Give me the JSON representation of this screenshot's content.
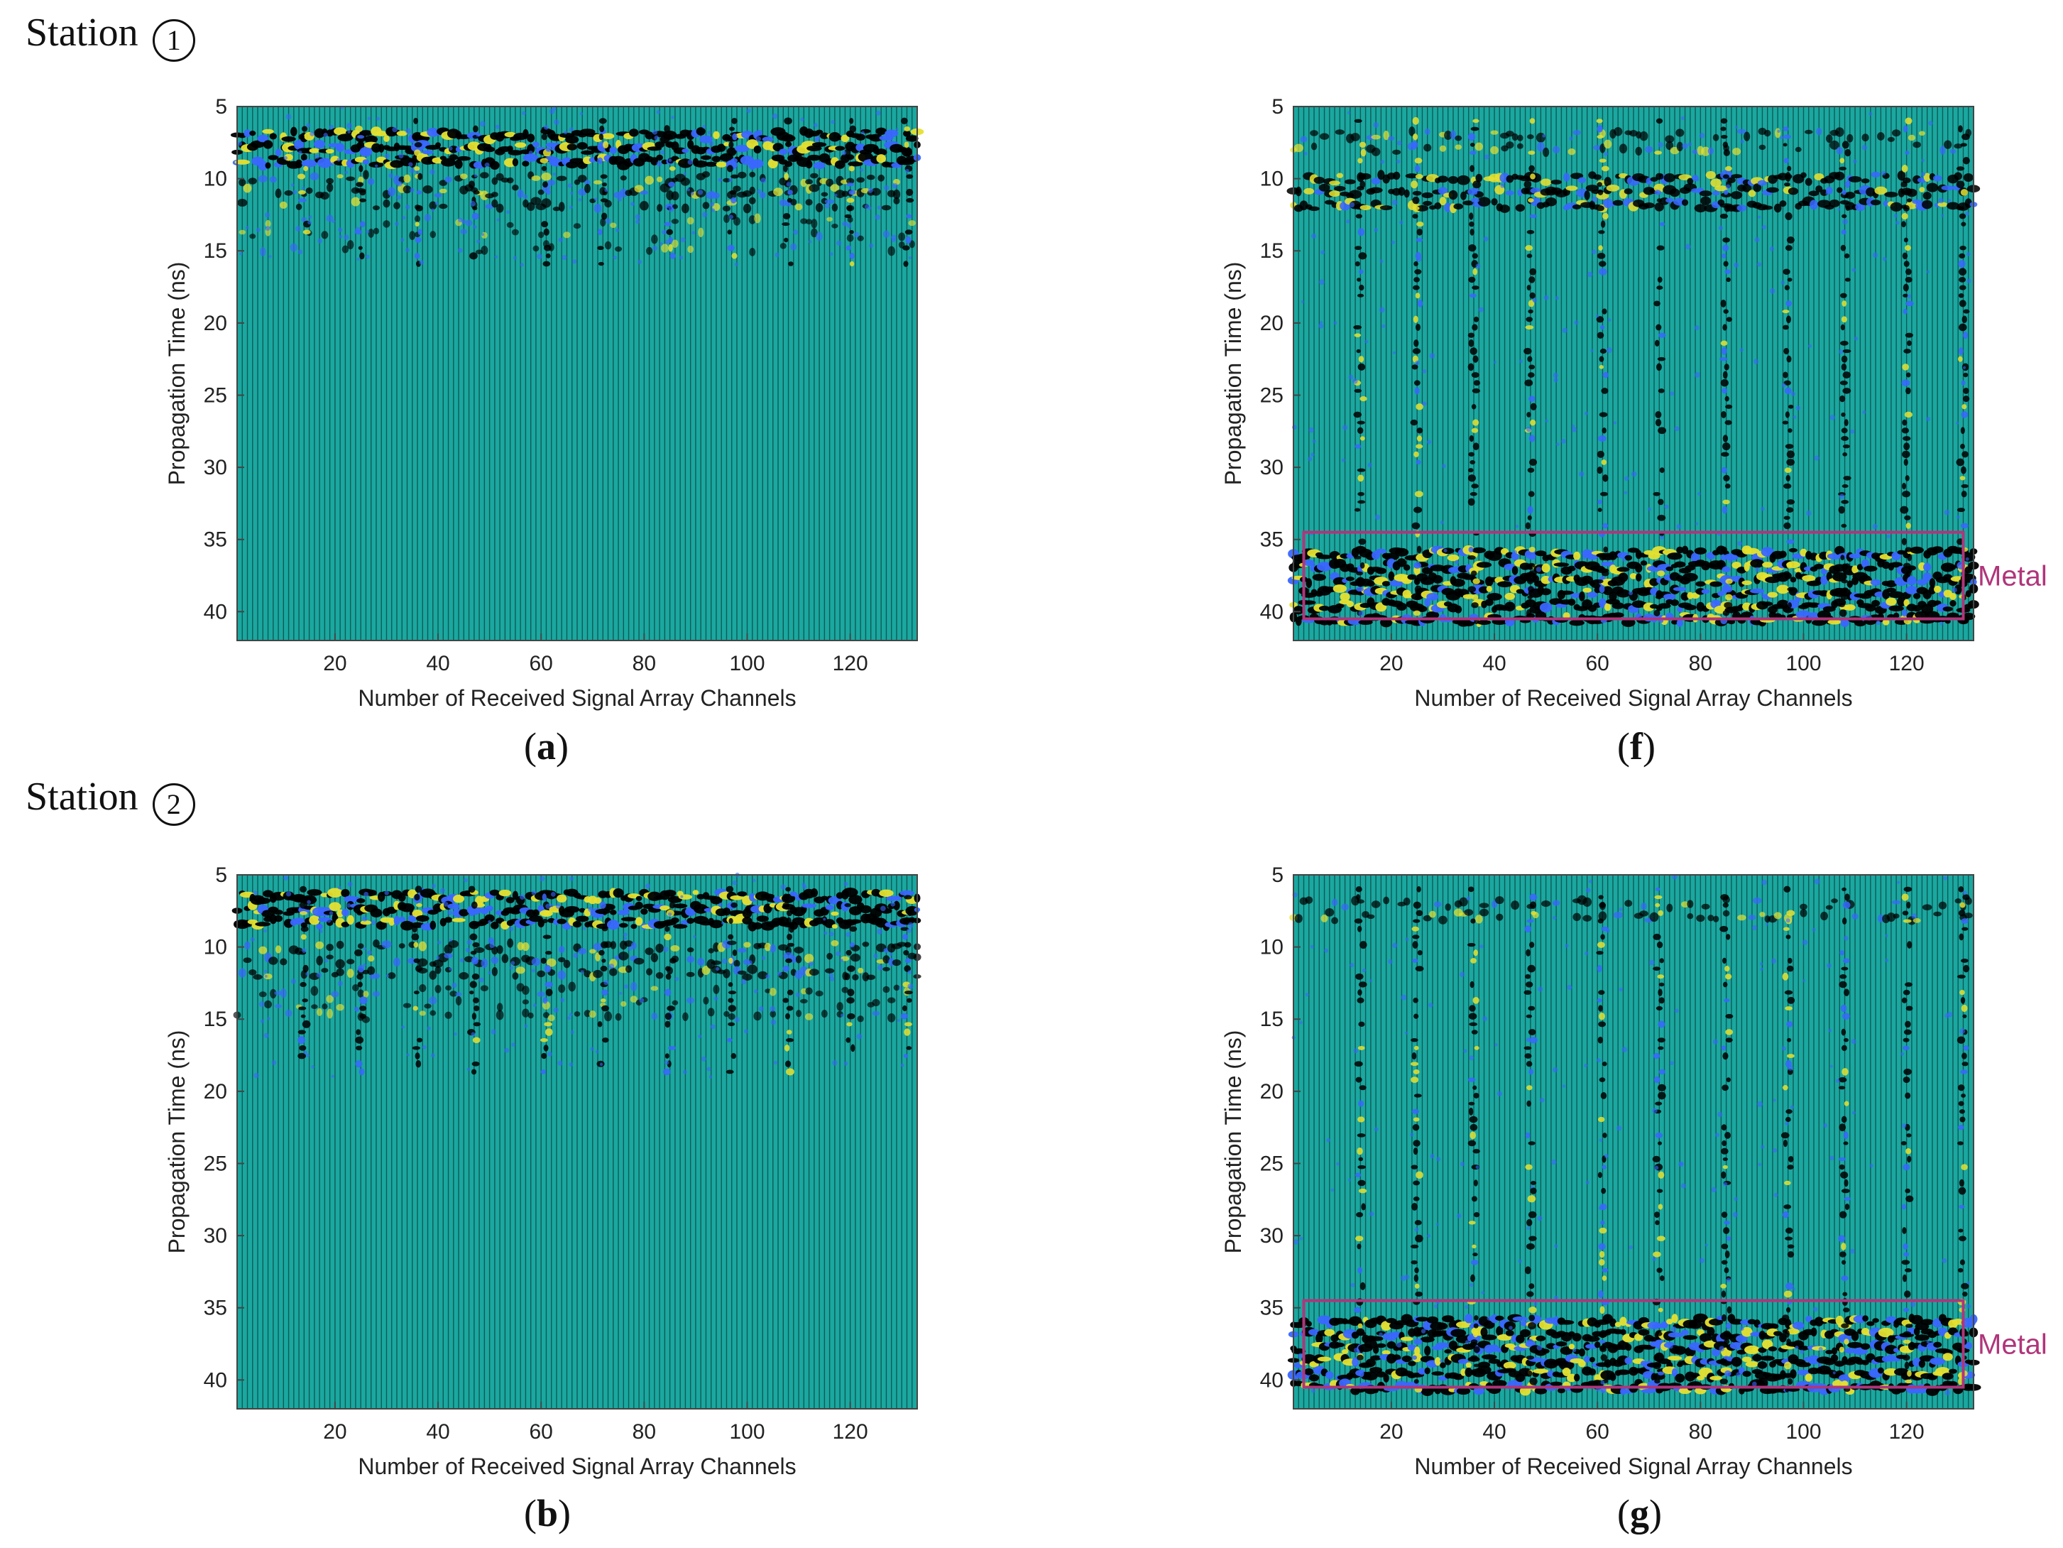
{
  "labels": {
    "station1": "Station",
    "station1_num": "1",
    "station2": "Station",
    "station2_num": "2"
  },
  "colors": {
    "background": "#1aa8a0",
    "trace_dark": "#0a1a1a",
    "reflection_black": "#000000",
    "highlight_yellow": "#e6e030",
    "highlight_blue": "#3a66ff",
    "annotation": "#b0357a",
    "axis": "#444444"
  },
  "chart_data": [
    {
      "id": "a",
      "type": "heatmap",
      "caption_letter": "a",
      "xlabel": "Number of Received Signal Array Channels",
      "ylabel": "Propagation Time (ns)",
      "xlim": [
        1,
        133
      ],
      "ylim": [
        5,
        42
      ],
      "xticks": [
        20,
        40,
        60,
        80,
        100,
        120
      ],
      "yticks": [
        5,
        10,
        15,
        20,
        25,
        30,
        35,
        40
      ],
      "strong_channels": [
        14,
        25,
        36,
        47,
        61,
        72,
        85,
        97,
        108,
        120,
        131
      ],
      "bands": [
        [
          7,
          9,
          1.0
        ],
        [
          10,
          12,
          0.5
        ],
        [
          13,
          15,
          0.2
        ]
      ],
      "streak_extent_ns": 16,
      "annotation": null
    },
    {
      "id": "f",
      "type": "heatmap",
      "caption_letter": "f",
      "xlabel": "Number of Received Signal Array Channels",
      "ylabel": "Propagation Time (ns)",
      "xlim": [
        1,
        133
      ],
      "ylim": [
        5,
        42
      ],
      "xticks": [
        20,
        40,
        60,
        80,
        100,
        120
      ],
      "yticks": [
        5,
        10,
        15,
        20,
        25,
        30,
        35,
        40
      ],
      "strong_channels": [
        14,
        25,
        36,
        47,
        61,
        72,
        85,
        97,
        108,
        120,
        131
      ],
      "bands": [
        [
          7,
          8,
          0.4
        ],
        [
          10,
          12,
          0.8
        ],
        [
          36,
          41,
          1.0
        ]
      ],
      "streak_extent_ns": 41,
      "annotation": {
        "label": "Metal",
        "x_range": [
          3,
          131
        ],
        "y_range": [
          34.5,
          40.5
        ]
      }
    },
    {
      "id": "b",
      "type": "heatmap",
      "caption_letter": "b",
      "xlabel": "Number of Received Signal Array Channels",
      "ylabel": "Propagation Time (ns)",
      "xlim": [
        1,
        133
      ],
      "ylim": [
        5,
        42
      ],
      "xticks": [
        20,
        40,
        60,
        80,
        100,
        120
      ],
      "yticks": [
        5,
        10,
        15,
        20,
        25,
        30,
        35,
        40
      ],
      "strong_channels": [
        14,
        25,
        36,
        47,
        61,
        72,
        85,
        97,
        108,
        120,
        131
      ],
      "bands": [
        [
          6.5,
          9,
          1.0
        ],
        [
          10,
          12,
          0.5
        ],
        [
          13,
          15,
          0.25
        ]
      ],
      "streak_extent_ns": 19,
      "annotation": null
    },
    {
      "id": "g",
      "type": "heatmap",
      "caption_letter": "g",
      "xlabel": "Number of Received Signal Array Channels",
      "ylabel": "Propagation Time (ns)",
      "xlim": [
        1,
        133
      ],
      "ylim": [
        5,
        42
      ],
      "xticks": [
        20,
        40,
        60,
        80,
        100,
        120
      ],
      "yticks": [
        5,
        10,
        15,
        20,
        25,
        30,
        35,
        40
      ],
      "strong_channels": [
        14,
        25,
        36,
        47,
        61,
        72,
        85,
        97,
        108,
        120,
        131
      ],
      "bands": [
        [
          7,
          8,
          0.4
        ],
        [
          36,
          41,
          1.0
        ]
      ],
      "streak_extent_ns": 41,
      "annotation": {
        "label": "Metal",
        "x_range": [
          3,
          131
        ],
        "y_range": [
          34.5,
          40.5
        ]
      }
    }
  ]
}
